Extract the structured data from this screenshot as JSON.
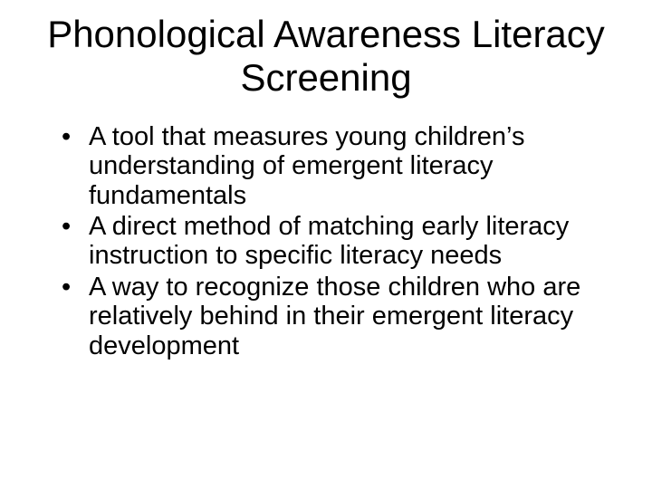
{
  "slide": {
    "title": "Phonological Awareness Literacy Screening",
    "bullets": [
      "A tool that measures young children’s understanding of emergent literacy fundamentals",
      "A direct method of matching early literacy instruction to specific literacy needs",
      "A way to recognize those children who are relatively behind in their emergent literacy development"
    ],
    "styling": {
      "background_color": "#ffffff",
      "text_color": "#000000",
      "title_fontsize": 42,
      "body_fontsize": 29,
      "font_family": "Comic Sans MS",
      "title_align": "center",
      "slide_width": 720,
      "slide_height": 540
    }
  }
}
